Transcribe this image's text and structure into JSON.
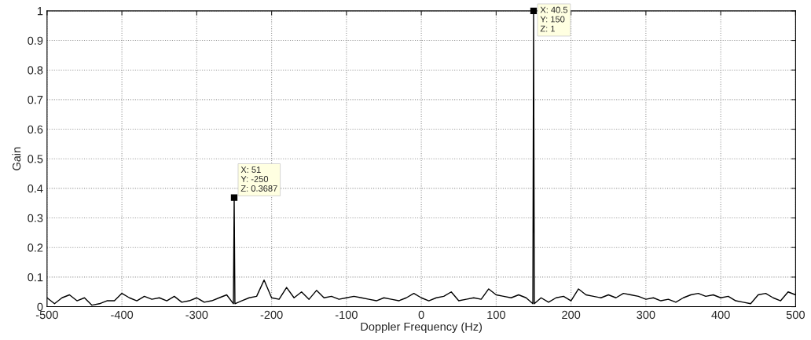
{
  "chart_data": {
    "type": "line",
    "xlabel": "Doppler Frequency (Hz)",
    "ylabel": "Gain",
    "x": [
      -500,
      -490,
      -480,
      -470,
      -460,
      -450,
      -440,
      -430,
      -420,
      -410,
      -400,
      -390,
      -380,
      -370,
      -360,
      -350,
      -340,
      -330,
      -320,
      -310,
      -300,
      -290,
      -280,
      -270,
      -260,
      -251,
      -250,
      -249,
      -240,
      -230,
      -220,
      -210,
      -200,
      -190,
      -180,
      -170,
      -160,
      -150,
      -140,
      -130,
      -120,
      -110,
      -100,
      -90,
      -80,
      -70,
      -60,
      -50,
      -40,
      -30,
      -20,
      -10,
      0,
      10,
      20,
      30,
      40,
      50,
      60,
      70,
      80,
      90,
      100,
      110,
      120,
      130,
      140,
      149,
      150,
      151,
      160,
      170,
      180,
      190,
      200,
      210,
      220,
      230,
      240,
      250,
      260,
      270,
      280,
      290,
      300,
      310,
      320,
      330,
      340,
      350,
      360,
      370,
      380,
      390,
      400,
      410,
      420,
      430,
      440,
      450,
      460,
      470,
      480,
      490,
      500
    ],
    "series": [
      {
        "color": "#000000",
        "values": [
          0.03,
          0.01,
          0.03,
          0.04,
          0.02,
          0.03,
          0.005,
          0.01,
          0.02,
          0.02,
          0.045,
          0.03,
          0.02,
          0.035,
          0.025,
          0.03,
          0.02,
          0.035,
          0.015,
          0.02,
          0.03,
          0.015,
          0.02,
          0.03,
          0.04,
          0.01,
          0.3687,
          0.01,
          0.02,
          0.03,
          0.035,
          0.09,
          0.03,
          0.025,
          0.065,
          0.03,
          0.05,
          0.025,
          0.055,
          0.03,
          0.035,
          0.025,
          0.03,
          0.035,
          0.03,
          0.025,
          0.02,
          0.03,
          0.025,
          0.02,
          0.03,
          0.045,
          0.03,
          0.02,
          0.03,
          0.035,
          0.05,
          0.02,
          0.025,
          0.03,
          0.025,
          0.06,
          0.04,
          0.035,
          0.03,
          0.04,
          0.03,
          0.01,
          1,
          0.01,
          0.03,
          0.015,
          0.03,
          0.035,
          0.02,
          0.06,
          0.04,
          0.035,
          0.03,
          0.04,
          0.03,
          0.045,
          0.04,
          0.035,
          0.025,
          0.03,
          0.02,
          0.025,
          0.015,
          0.03,
          0.04,
          0.045,
          0.035,
          0.04,
          0.03,
          0.035,
          0.02,
          0.015,
          0.01,
          0.04,
          0.045,
          0.03,
          0.02,
          0.05,
          0.04
        ]
      }
    ],
    "xlim": [
      -500,
      500
    ],
    "ylim": [
      0,
      1
    ],
    "xticks": [
      -500,
      -400,
      -300,
      -200,
      -100,
      0,
      100,
      200,
      300,
      400,
      500
    ],
    "yticks": [
      0,
      0.1,
      0.2,
      0.3,
      0.4,
      0.5,
      0.6,
      0.7,
      0.8,
      0.9,
      1
    ],
    "grid": true,
    "line_style": "solid",
    "marker": "none",
    "annotations": [
      {
        "text": "X: 51\nY: -250\nZ: 0.3687",
        "x": -250,
        "y": 0.3687
      },
      {
        "text": "X: 40.5\nY: 150\nZ: 1",
        "x": 150,
        "y": 1
      }
    ]
  }
}
